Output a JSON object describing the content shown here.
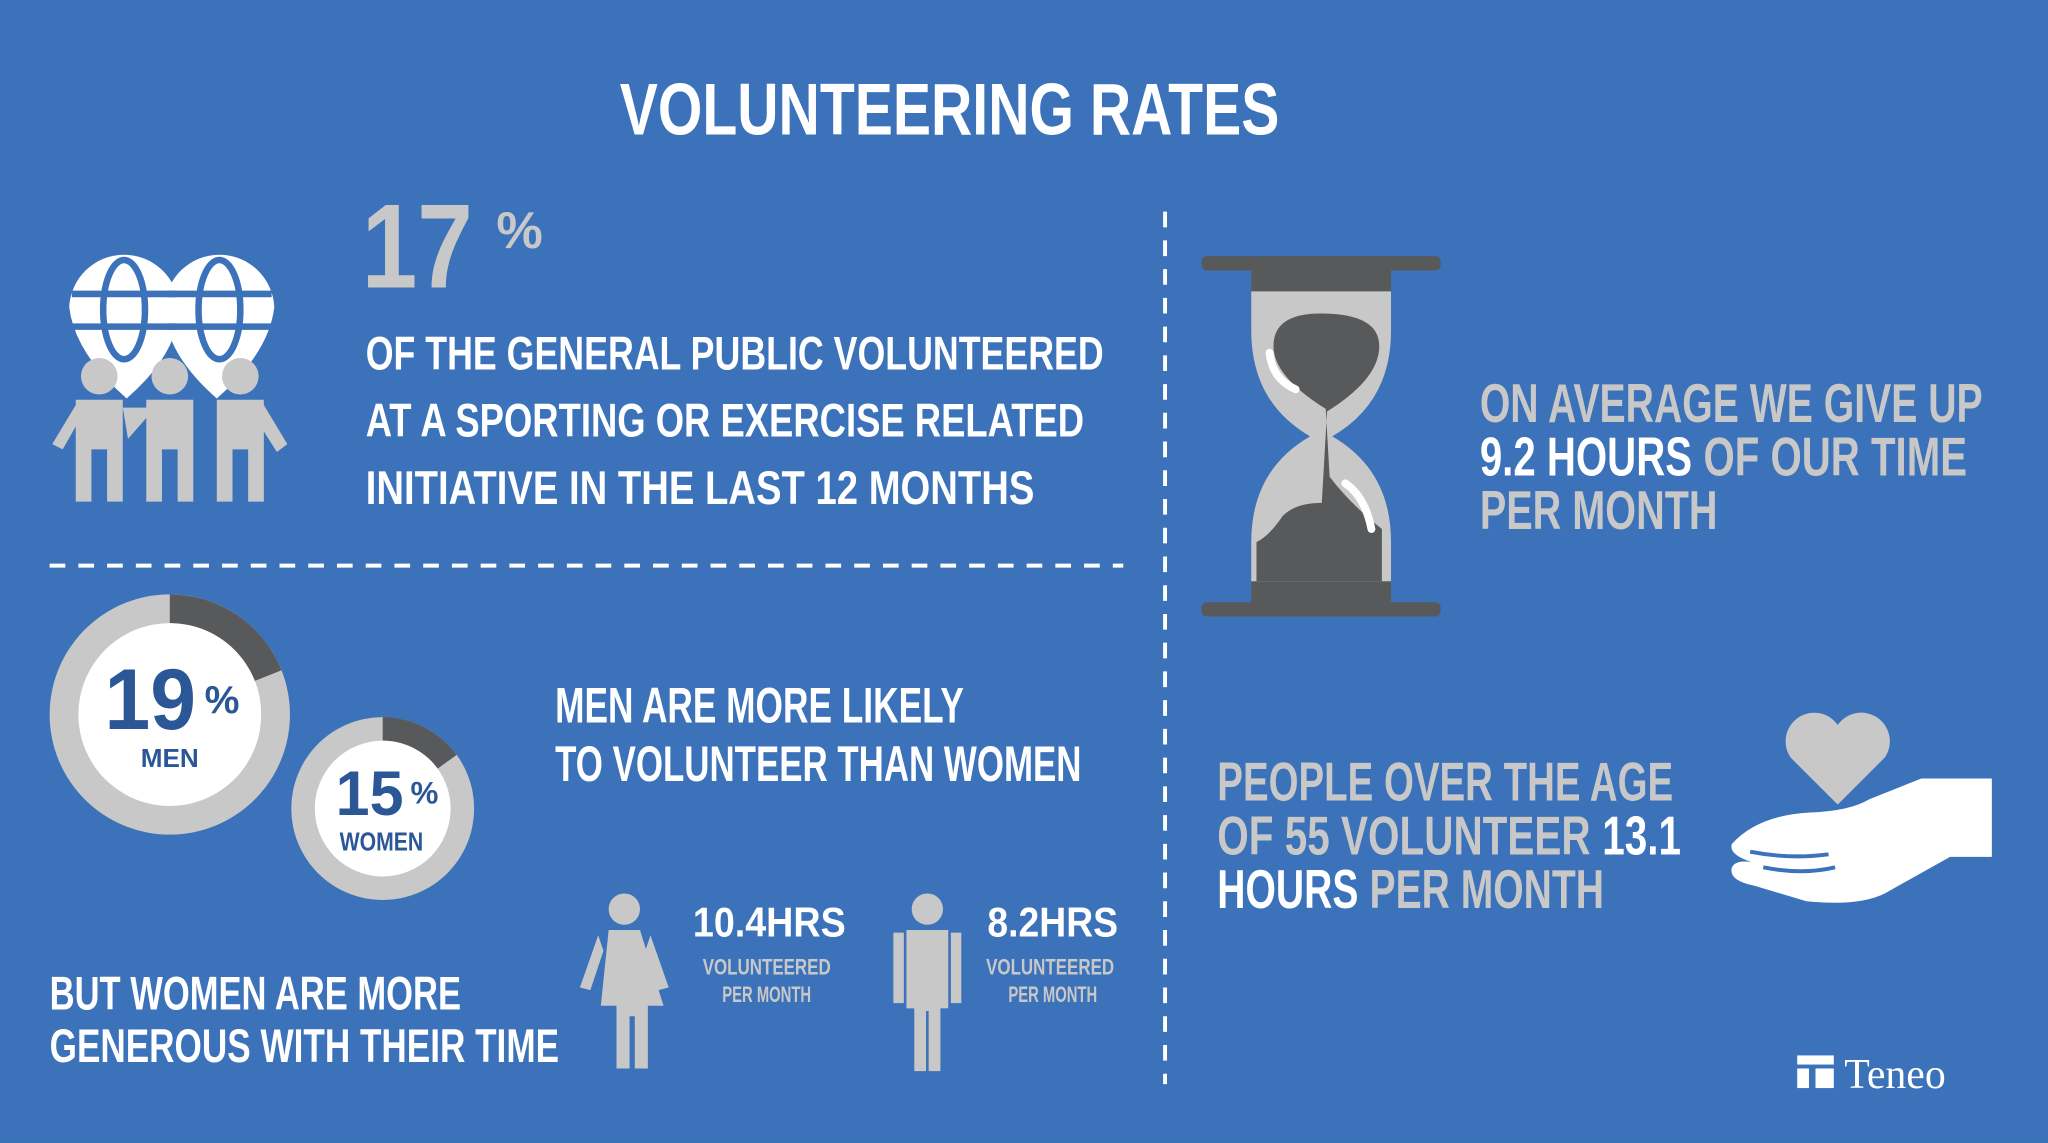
{
  "title": "VOLUNTEERING RATES",
  "general_public": {
    "value": 17,
    "unit": "%",
    "lines": [
      "OF THE GENERAL PUBLIC VOLUNTEERED",
      "AT A SPORTING OR EXERCISE RELATED",
      "INITIATIVE IN THE LAST 12 MONTHS"
    ]
  },
  "gender": {
    "men": {
      "value": 19,
      "unit": "%",
      "label": "MEN"
    },
    "women": {
      "value": 15,
      "unit": "%",
      "label": "WOMEN"
    },
    "lines": [
      "MEN ARE MORE LIKELY",
      "TO VOLUNTEER THAN WOMEN"
    ]
  },
  "time": {
    "lines": [
      "BUT WOMEN ARE MORE",
      "GENEROUS WITH THEIR TIME"
    ],
    "women": {
      "hours": "10.4HRS",
      "caption": [
        "VOLUNTEERED",
        "PER MONTH"
      ]
    },
    "men": {
      "hours": "8.2HRS",
      "caption": [
        "VOLUNTEERED",
        "PER MONTH"
      ]
    }
  },
  "average": {
    "line1": "ON AVERAGE WE GIVE UP",
    "line2_highlight": "9.2 HOURS",
    "line2_rest": "OF OUR TIME",
    "line3": "PER MONTH"
  },
  "over_55": {
    "line1": "PEOPLE OVER THE AGE",
    "line2_text": "OF 55 VOLUNTEER",
    "line2_highlight": "13.1",
    "line3_highlight": "HOURS",
    "line3_rest": "PER MONTH"
  },
  "logo": "Teneo"
}
